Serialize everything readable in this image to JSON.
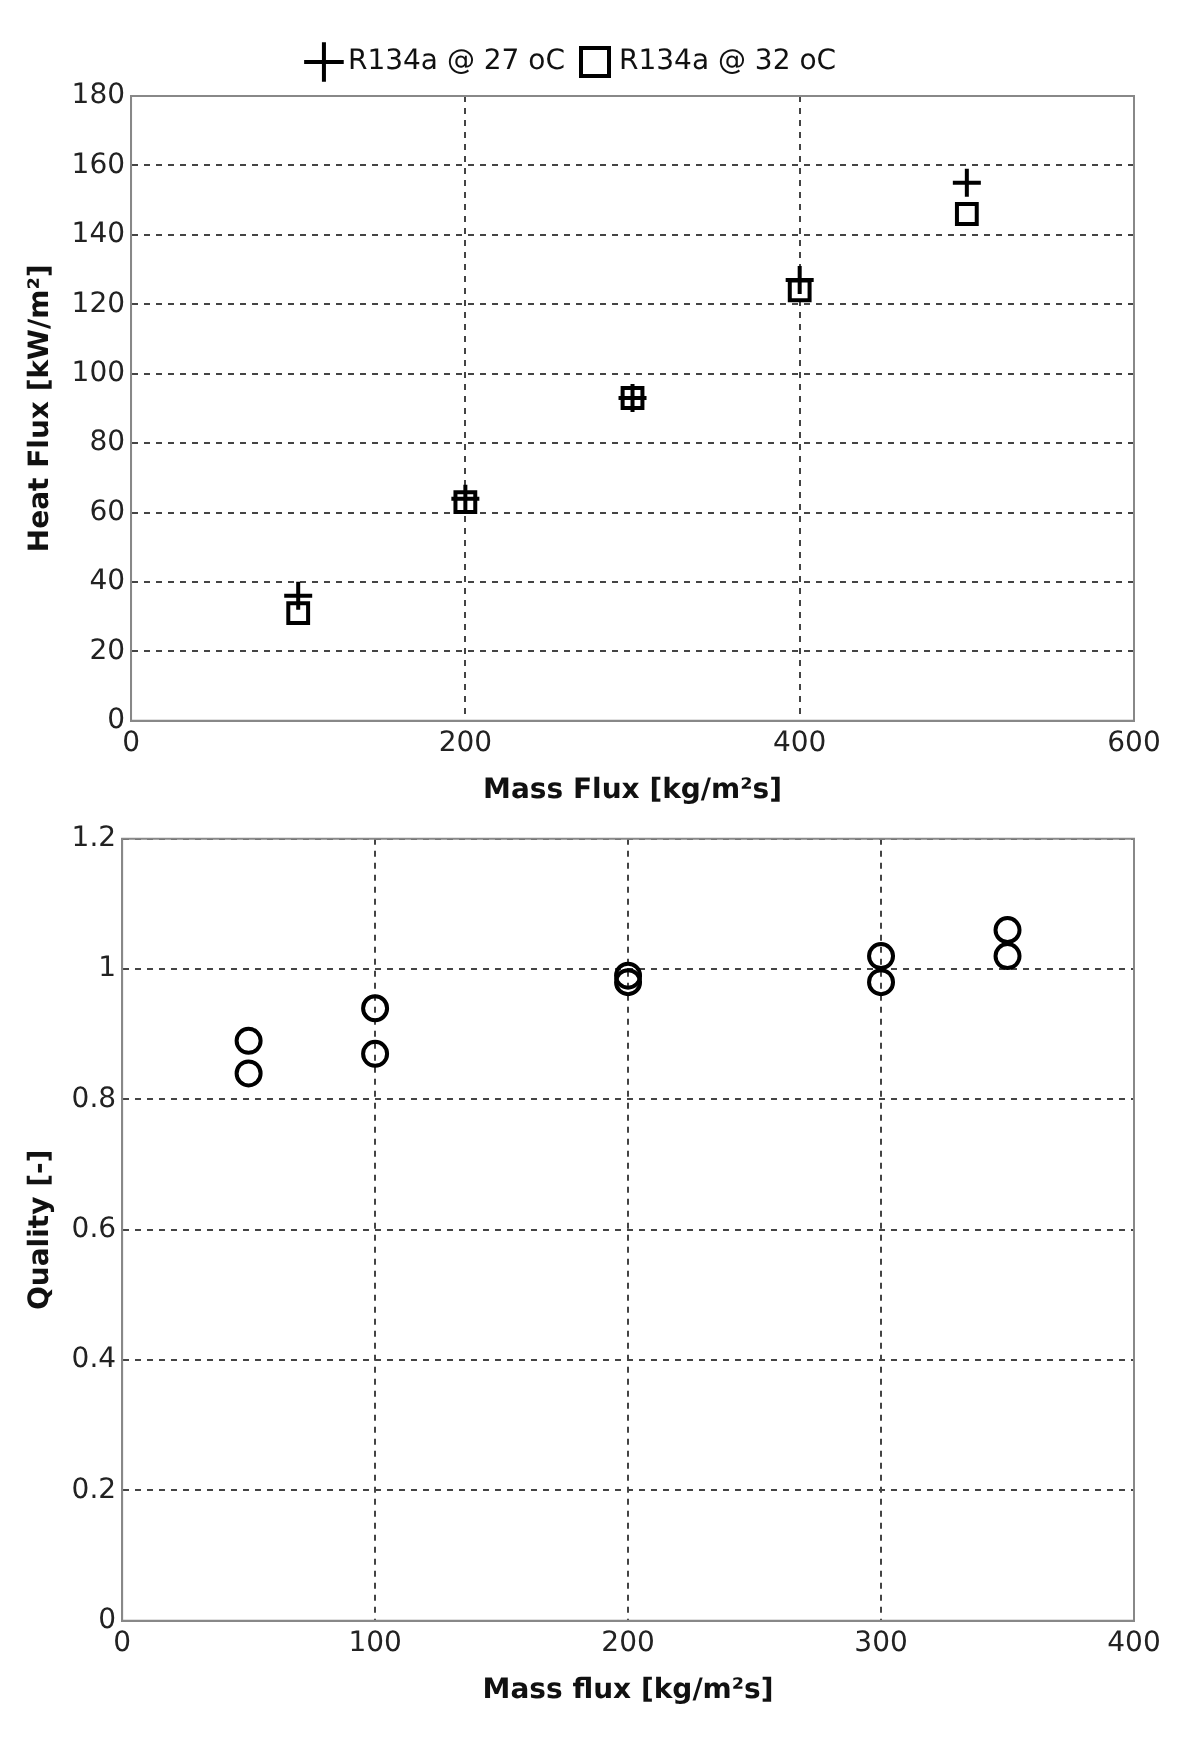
{
  "chart_data": [
    {
      "type": "scatter",
      "xlabel": "Mass Flux [kg/m²s]",
      "ylabel": "Heat Flux [kW/m²]",
      "xlim": [
        0,
        600
      ],
      "xticks": [
        0,
        200,
        400,
        600
      ],
      "ylim": [
        0,
        180
      ],
      "yticks": [
        0,
        20,
        40,
        60,
        80,
        100,
        120,
        140,
        160,
        180
      ],
      "grid": true,
      "legend": "top",
      "series": [
        {
          "name": "R134a @ 27 oC",
          "color": "#000000",
          "marker": "cross",
          "x": [
            100,
            200,
            300,
            400,
            500
          ],
          "values": [
            36,
            64,
            93,
            127,
            155
          ]
        },
        {
          "name": "R134a @ 32 oC",
          "color": "#000000",
          "marker": "square",
          "x": [
            100,
            200,
            300,
            400,
            500
          ],
          "values": [
            31,
            63,
            93,
            124,
            146
          ]
        }
      ]
    },
    {
      "type": "scatter",
      "xlabel": "Mass flux [kg/m²s]",
      "ylabel": "Quality [-]",
      "xlim": [
        0,
        400
      ],
      "xticks": [
        0,
        100,
        200,
        300,
        400
      ],
      "ylim": [
        0,
        1.2
      ],
      "yticks": [
        0,
        0.2,
        0.4,
        0.6,
        0.8,
        1,
        1.2
      ],
      "grid": true,
      "legend": false,
      "marker": "circle",
      "series": [
        {
          "color": "#000000",
          "x": [
            50,
            50,
            100,
            100,
            200,
            200,
            300,
            300,
            350,
            350
          ],
          "values": [
            0.89,
            0.84,
            0.94,
            0.87,
            0.99,
            0.98,
            1.02,
            0.98,
            1.06,
            1.02
          ]
        }
      ]
    }
  ]
}
